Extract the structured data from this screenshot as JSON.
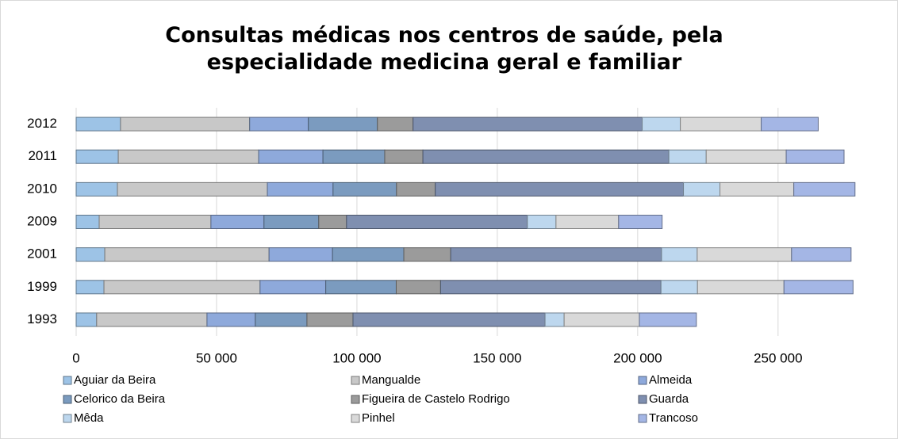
{
  "chart_data": {
    "type": "stacked_bar_horizontal",
    "title": "Consultas médicas nos centros de saúde, pela especialidade medicina geral e familiar",
    "categories": [
      "2012",
      "2011",
      "2010",
      "2009",
      "2001",
      "1999",
      "1993"
    ],
    "series": [
      {
        "name": "Aguiar da Beira",
        "color": "#9dc3e6",
        "values": [
          15800,
          15000,
          14700,
          8200,
          10200,
          9900,
          7300
        ]
      },
      {
        "name": "Mangualde",
        "color": "#c8c8c8",
        "values": [
          46000,
          50000,
          53400,
          39800,
          58500,
          55600,
          39300
        ]
      },
      {
        "name": "Almeida",
        "color": "#8ea9db",
        "values": [
          20900,
          22900,
          23400,
          18900,
          22600,
          23400,
          17200
        ]
      },
      {
        "name": "Celorico da Beira",
        "color": "#7b9bbf",
        "values": [
          24600,
          22000,
          22600,
          19500,
          25400,
          25100,
          18400
        ]
      },
      {
        "name": "Figueira de Castelo Rodrigo",
        "color": "#9b9b9b",
        "values": [
          12700,
          13600,
          13800,
          9900,
          16700,
          15800,
          16400
        ]
      },
      {
        "name": "Guarda",
        "color": "#7f8fb0",
        "values": [
          81600,
          87600,
          88400,
          64400,
          75100,
          78500,
          68400
        ]
      },
      {
        "name": "Mêda",
        "color": "#bdd7ee",
        "values": [
          13600,
          13300,
          13000,
          10200,
          12700,
          13000,
          6800
        ]
      },
      {
        "name": "Pinhel",
        "color": "#d9d9d9",
        "values": [
          28800,
          28500,
          26300,
          22300,
          33600,
          30800,
          26800
        ]
      },
      {
        "name": "Trancoso",
        "color": "#a4b6e5",
        "values": [
          20300,
          20600,
          21800,
          15500,
          21200,
          24600,
          20300
        ]
      }
    ],
    "xlim": [
      0,
      280000
    ],
    "xticks": [
      0,
      {
        "value": 50000,
        "label": "50 000"
      },
      {
        "value": 100000,
        "label": "100 000"
      },
      {
        "value": 150000,
        "label": "150 000"
      },
      {
        "value": 200000,
        "label": "200 000"
      },
      {
        "value": 250000,
        "label": "250 000"
      }
    ],
    "grid": true
  }
}
